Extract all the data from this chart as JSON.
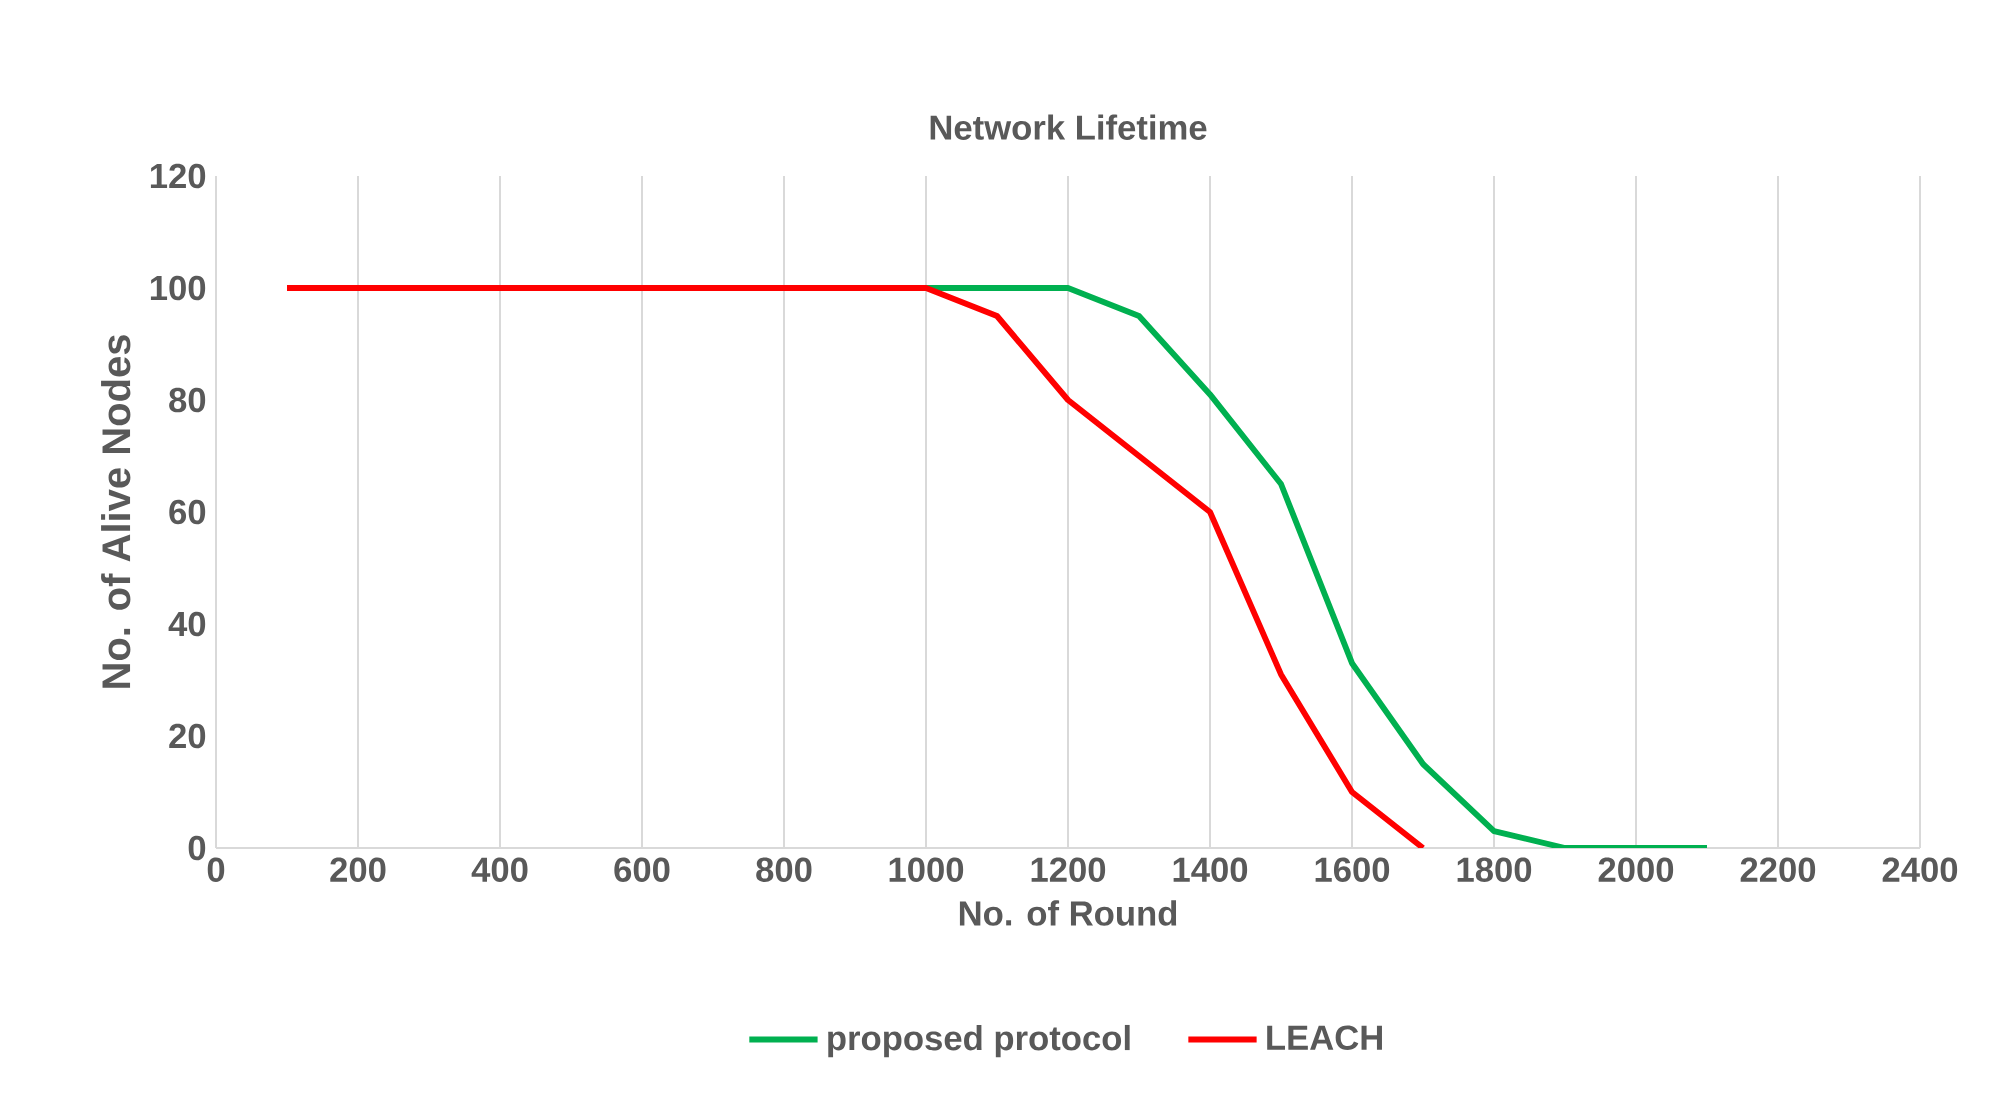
{
  "chart_data": {
    "type": "line",
    "title": "Network Lifetime",
    "xlabel": "No. of Round",
    "ylabel": "No. of Alive Nodes",
    "xlim": [
      0,
      2400
    ],
    "xticks": [
      0,
      200,
      400,
      600,
      800,
      1000,
      1200,
      1400,
      1600,
      1800,
      2000,
      2200,
      2400
    ],
    "ylim": [
      0,
      120
    ],
    "yticks": [
      0,
      20,
      40,
      60,
      80,
      100,
      120
    ],
    "grid": "x",
    "legend": "bottom",
    "marker": "none",
    "line_style": "solid",
    "series": [
      {
        "name": "proposed protocol",
        "color": "#00b050",
        "x": [
          1000,
          1100,
          1200,
          1300,
          1400,
          1500,
          1600,
          1700,
          1800,
          1900,
          2000,
          2100
        ],
        "values": [
          100,
          100,
          100,
          95,
          81,
          65,
          33,
          15,
          3,
          0,
          0,
          0
        ]
      },
      {
        "name": "LEACH",
        "color": "#ff0000",
        "x": [
          100,
          200,
          300,
          400,
          500,
          600,
          700,
          800,
          900,
          1000,
          1100,
          1200,
          1300,
          1400,
          1500,
          1600,
          1700
        ],
        "values": [
          100,
          100,
          100,
          100,
          100,
          100,
          100,
          100,
          100,
          100,
          95,
          80,
          70,
          60,
          31,
          10,
          0
        ]
      }
    ]
  }
}
